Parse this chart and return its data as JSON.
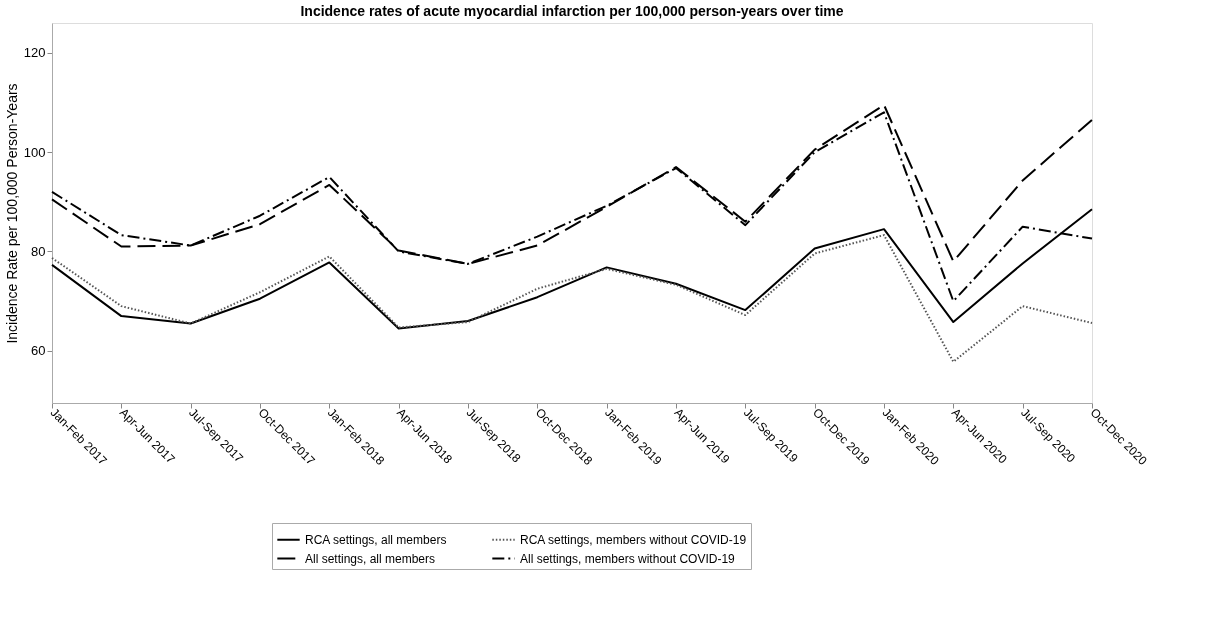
{
  "chart_data": {
    "type": "line",
    "title": "Incidence rates of acute myocardial infarction per 100,000 person-years over time",
    "ylabel": "Incidence Rate per 100,000 Person-Years",
    "categories": [
      "Jan-Feb 2017",
      "Apr-Jun 2017",
      "Jul-Sep 2017",
      "Oct-Dec 2017",
      "Jan-Feb 2018",
      "Apr-Jun 2018",
      "Jul-Sep 2018",
      "Oct-Dec 2018",
      "Jan-Feb 2019",
      "Apr-Jun 2019",
      "Jul-Sep 2019",
      "Oct-Dec 2019",
      "Jan-Feb 2020",
      "Apr-Jun 2020",
      "Jul-Sep 2020",
      "Oct-Dec 2020"
    ],
    "series": [
      {
        "name": "RCA settings, all members",
        "color": "#000000",
        "line_style": "solid",
        "values": [
          77.3,
          67,
          65.5,
          70.5,
          77.8,
          64.5,
          66,
          70.8,
          76.8,
          73.5,
          68.2,
          80.6,
          84.5,
          65.8,
          77.6,
          88.5
        ]
      },
      {
        "name": "All settings, all members",
        "color": "#000000",
        "line_style": "dashed",
        "values": [
          90.5,
          81,
          81.2,
          85.5,
          93.4,
          80.2,
          77.5,
          81.2,
          89,
          97,
          86,
          100.5,
          109.5,
          78,
          94.3,
          106.5
        ]
      },
      {
        "name": "RCA settings, members without COVID-19",
        "color": "#555555",
        "line_style": "dotted",
        "values": [
          78.7,
          69,
          65.5,
          71.8,
          79,
          64.7,
          65.8,
          72.5,
          76.5,
          73.3,
          67.2,
          79.6,
          83.3,
          57.8,
          69,
          65.6
        ]
      },
      {
        "name": "All settings, members without COVID-19",
        "color": "#000000",
        "line_style": "dashdot",
        "values": [
          92,
          83.3,
          81.2,
          87.2,
          95,
          80,
          77.5,
          83,
          89.2,
          96.8,
          85.3,
          100,
          108,
          70,
          85,
          82.6
        ]
      }
    ],
    "ylim": [
      49.5,
      126
    ],
    "yticks": [
      60,
      80,
      100,
      120
    ],
    "grid": false,
    "legend": "bottom",
    "marker": "none"
  }
}
